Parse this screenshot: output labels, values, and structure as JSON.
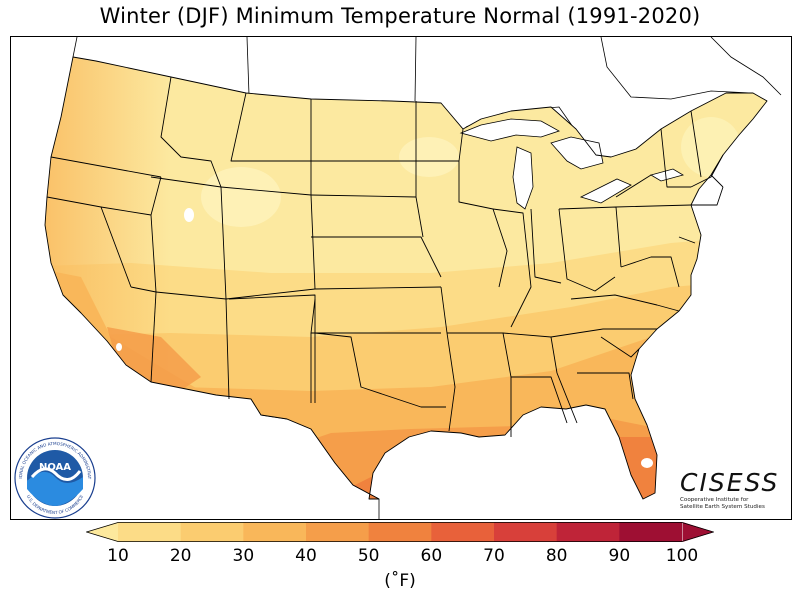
{
  "title": "Winter (DJF) Minimum Temperature Normal (1991-2020)",
  "legend": {
    "unit_label": "(˚F)",
    "ticks": [
      "10",
      "20",
      "30",
      "40",
      "50",
      "60",
      "70",
      "80",
      "90",
      "100"
    ],
    "colors": [
      "#fde99d",
      "#fcdc87",
      "#fbcc70",
      "#f9b75a",
      "#f59e4a",
      "#f0823e",
      "#e8613a",
      "#d8403a",
      "#bf2438",
      "#9e0f33"
    ]
  },
  "logos": {
    "noaa_text": "NOAA",
    "noaa_ring_top": "NATIONAL OCEANIC AND ATMOSPHERIC ADMINISTRATION",
    "noaa_ring_bottom": "U.S. DEPARTMENT OF COMMERCE",
    "cisess_name": "CISESS",
    "cisess_line1": "Cooperative Institute for",
    "cisess_line2": "Satellite Earth System Studies"
  }
}
